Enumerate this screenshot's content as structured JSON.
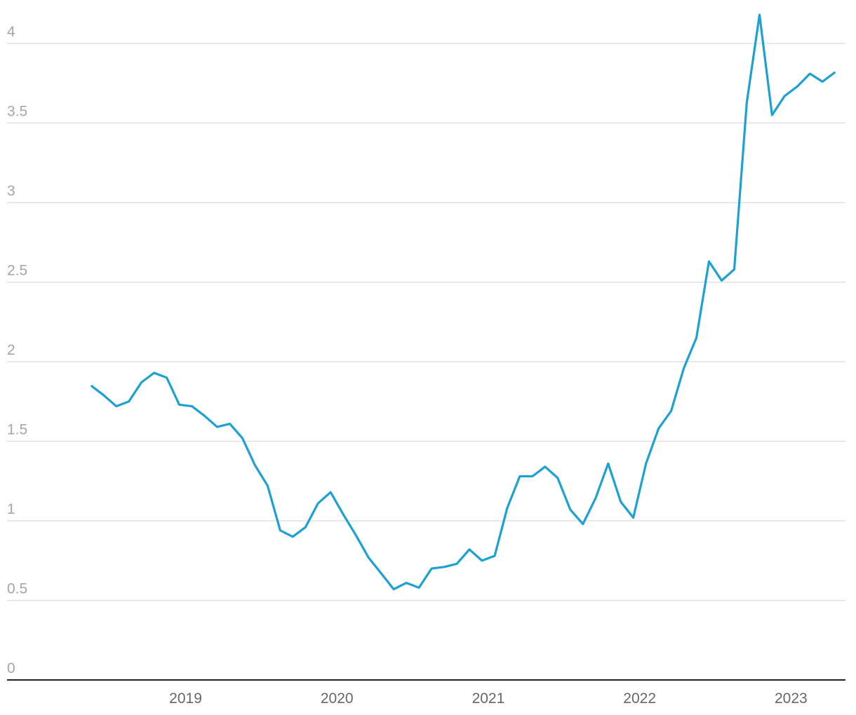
{
  "chart_data": {
    "type": "line",
    "x": [
      2018.375,
      2018.458,
      2018.542,
      2018.625,
      2018.708,
      2018.792,
      2018.875,
      2018.958,
      2019.042,
      2019.125,
      2019.208,
      2019.292,
      2019.375,
      2019.458,
      2019.542,
      2019.625,
      2019.708,
      2019.792,
      2019.875,
      2019.958,
      2020.042,
      2020.125,
      2020.208,
      2020.292,
      2020.375,
      2020.458,
      2020.542,
      2020.625,
      2020.708,
      2020.792,
      2020.875,
      2020.958,
      2021.042,
      2021.125,
      2021.208,
      2021.292,
      2021.375,
      2021.458,
      2021.542,
      2021.625,
      2021.708,
      2021.792,
      2021.875,
      2021.958,
      2022.042,
      2022.125,
      2022.208,
      2022.292,
      2022.375,
      2022.458,
      2022.542,
      2022.625,
      2022.708,
      2022.792,
      2022.875,
      2022.958,
      2023.042,
      2023.125,
      2023.208,
      2023.292
    ],
    "series": [
      {
        "color": "#1da1d2",
        "values": [
          1.85,
          1.79,
          1.72,
          1.75,
          1.87,
          1.93,
          1.9,
          1.73,
          1.72,
          1.66,
          1.59,
          1.61,
          1.52,
          1.35,
          1.22,
          0.94,
          0.9,
          0.96,
          1.11,
          1.18,
          1.04,
          0.91,
          0.77,
          0.67,
          0.57,
          0.61,
          0.58,
          0.7,
          0.71,
          0.73,
          0.82,
          0.75,
          0.78,
          1.08,
          1.28,
          1.28,
          1.34,
          1.27,
          1.07,
          0.98,
          1.14,
          1.36,
          1.12,
          1.02,
          1.36,
          1.58,
          1.69,
          1.96,
          2.15,
          2.63,
          2.51,
          2.58,
          3.63,
          4.18,
          3.55,
          3.67,
          3.73,
          3.81,
          3.76,
          3.82
        ]
      }
    ],
    "xlim": [
      2017.82,
      2023.36
    ],
    "xticks": [
      2019,
      2020,
      2021,
      2022,
      2023
    ],
    "ylim": [
      0,
      4.2
    ],
    "yticks": [
      0,
      0.5,
      1,
      1.5,
      2,
      2.5,
      3,
      3.5,
      4
    ],
    "grid": true
  }
}
